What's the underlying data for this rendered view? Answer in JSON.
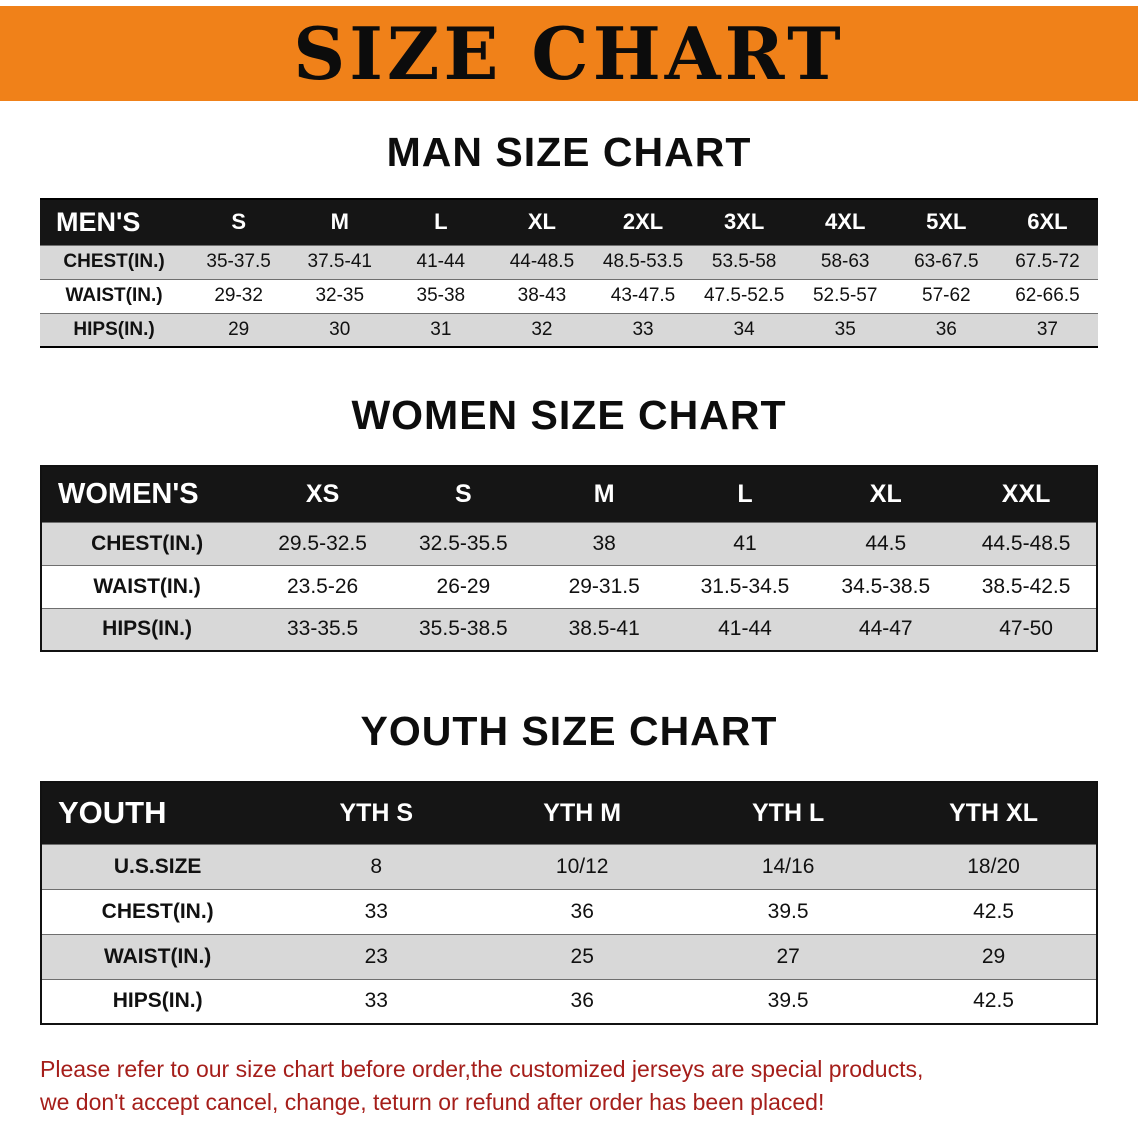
{
  "banner": {
    "title": "SIZE CHART"
  },
  "colors": {
    "banner_bg": "#f08119",
    "header_bg": "#151515",
    "row_alt": "#d8d8d8",
    "disclaimer": "#a51e1a"
  },
  "sections": [
    {
      "id": "men",
      "heading": "MAN SIZE CHART",
      "table": {
        "label_header": "MEN'S",
        "size_headers": [
          "S",
          "M",
          "L",
          "XL",
          "2XL",
          "3XL",
          "4XL",
          "5XL",
          "6XL"
        ],
        "rows": [
          {
            "label": "CHEST(IN.)",
            "values": [
              "35-37.5",
              "37.5-41",
              "41-44",
              "44-48.5",
              "48.5-53.5",
              "53.5-58",
              "58-63",
              "63-67.5",
              "67.5-72"
            ]
          },
          {
            "label": "WAIST(IN.)",
            "values": [
              "29-32",
              "32-35",
              "35-38",
              "38-43",
              "43-47.5",
              "47.5-52.5",
              "52.5-57",
              "57-62",
              "62-66.5"
            ]
          },
          {
            "label": "HIPS(IN.)",
            "values": [
              "29",
              "30",
              "31",
              "32",
              "33",
              "34",
              "35",
              "36",
              "37"
            ]
          }
        ]
      }
    },
    {
      "id": "women",
      "heading": "WOMEN SIZE CHART",
      "table": {
        "label_header": "WOMEN'S",
        "size_headers": [
          "XS",
          "S",
          "M",
          "L",
          "XL",
          "XXL"
        ],
        "rows": [
          {
            "label": "CHEST(IN.)",
            "values": [
              "29.5-32.5",
              "32.5-35.5",
              "38",
              "41",
              "44.5",
              "44.5-48.5"
            ]
          },
          {
            "label": "WAIST(IN.)",
            "values": [
              "23.5-26",
              "26-29",
              "29-31.5",
              "31.5-34.5",
              "34.5-38.5",
              "38.5-42.5"
            ]
          },
          {
            "label": "HIPS(IN.)",
            "values": [
              "33-35.5",
              "35.5-38.5",
              "38.5-41",
              "41-44",
              "44-47",
              "47-50"
            ]
          }
        ]
      }
    },
    {
      "id": "youth",
      "heading": "YOUTH SIZE CHART",
      "table": {
        "label_header": "YOUTH",
        "size_headers": [
          "YTH S",
          "YTH M",
          "YTH L",
          "YTH XL"
        ],
        "rows": [
          {
            "label": "U.S.SIZE",
            "values": [
              "8",
              "10/12",
              "14/16",
              "18/20"
            ]
          },
          {
            "label": "CHEST(IN.)",
            "values": [
              "33",
              "36",
              "39.5",
              "42.5"
            ]
          },
          {
            "label": "WAIST(IN.)",
            "values": [
              "23",
              "25",
              "27",
              "29"
            ]
          },
          {
            "label": "HIPS(IN.)",
            "values": [
              "33",
              "36",
              "39.5",
              "42.5"
            ]
          }
        ]
      }
    }
  ],
  "disclaimer": {
    "line1": "Please refer to our size chart before order,the customized jerseys are special products,",
    "line2": "we don't accept cancel, change, teturn or refund after order has been placed!"
  }
}
